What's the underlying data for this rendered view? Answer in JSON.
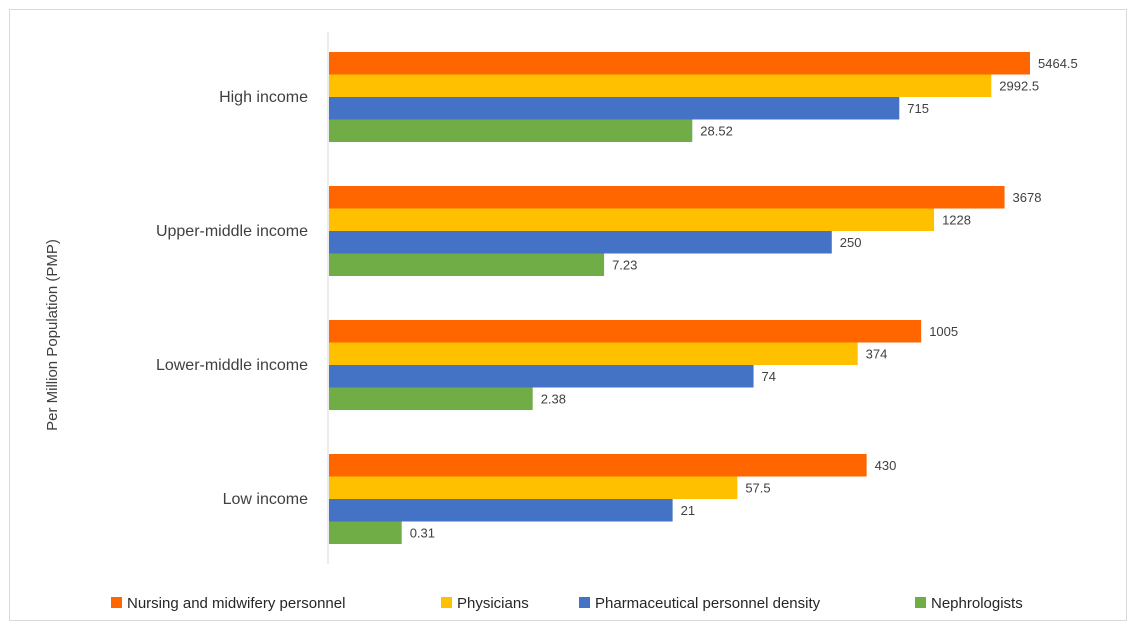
{
  "chart_data": {
    "type": "bar",
    "orientation": "horizontal",
    "title": "",
    "ylabel": "Per Million Population (PMP)",
    "xlabel": "",
    "categories": [
      "High income",
      "Upper-middle income",
      "Lower-middle income",
      "Low income"
    ],
    "series": [
      {
        "name": "Nursing and midwifery personnel",
        "color": "#ff6600",
        "values": [
          5464.5,
          3678,
          1005,
          430
        ],
        "labels": [
          "5464.5",
          "3678",
          "1005",
          "430"
        ]
      },
      {
        "name": "Physicians",
        "color": "#ffc000",
        "values": [
          2992.5,
          1228,
          374,
          57.5
        ],
        "labels": [
          "2992.5",
          "1228",
          "374",
          "57.5"
        ]
      },
      {
        "name": "Pharmaceutical personnel density",
        "color": "#4472c4",
        "values": [
          715,
          250,
          74,
          21
        ],
        "labels": [
          "715",
          "250",
          "74",
          "21"
        ]
      },
      {
        "name": "Nephrologists",
        "color": "#70ad47",
        "values": [
          28.52,
          7.23,
          2.38,
          0.31
        ],
        "labels": [
          "28.52",
          "7.23",
          "2.38",
          "0.31"
        ]
      }
    ],
    "x_scale": "log",
    "legend_position": "bottom",
    "grid": false
  }
}
